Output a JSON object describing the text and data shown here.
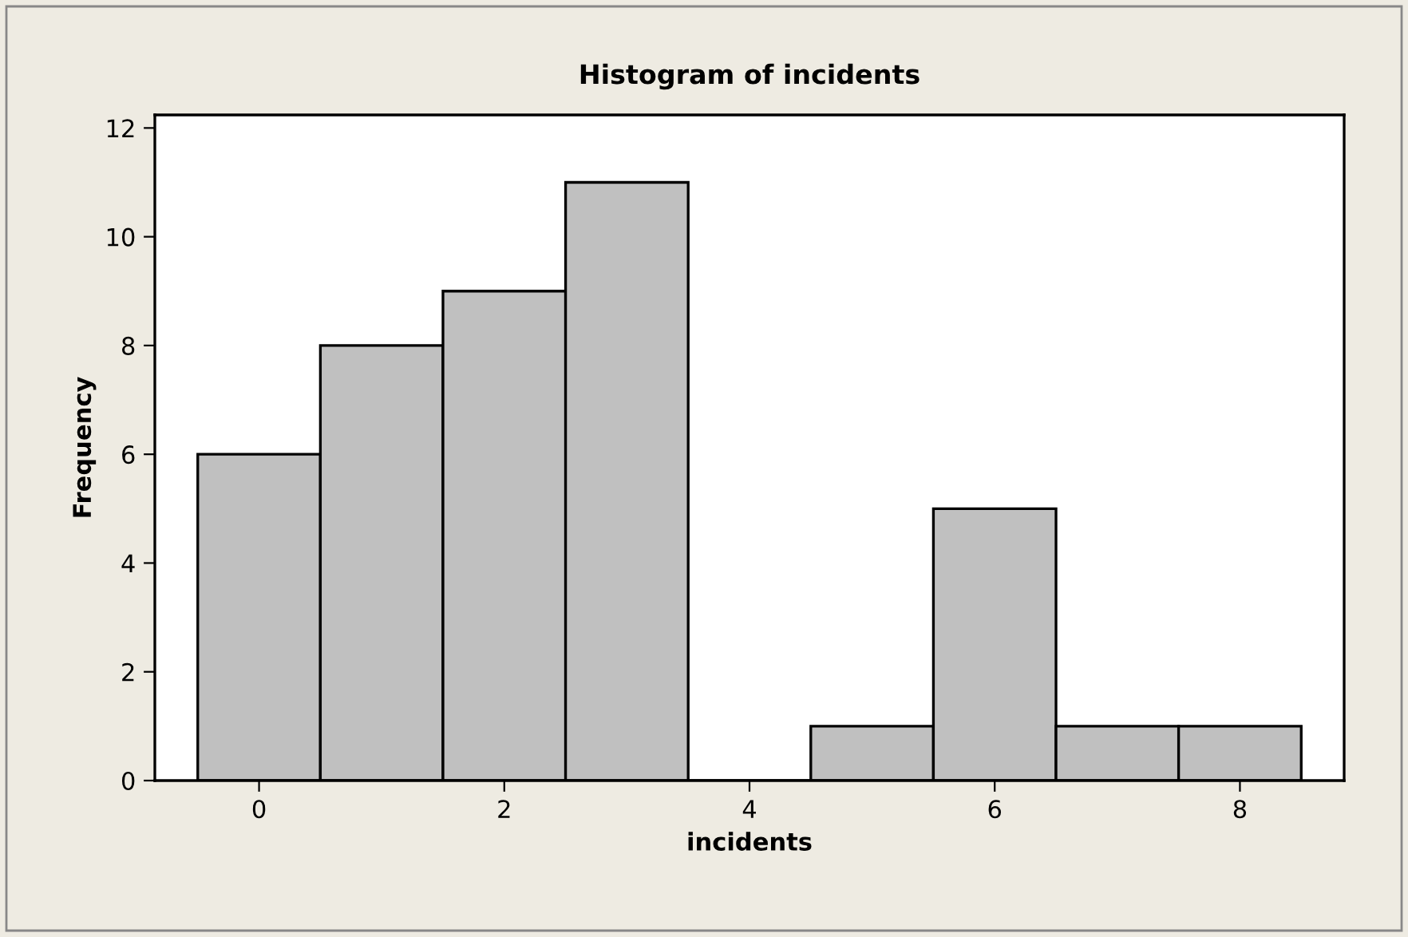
{
  "chart_data": {
    "type": "histogram",
    "title": "Histogram of incidents",
    "xlabel": "incidents",
    "ylabel": "Frequency",
    "bins": [
      -0.5,
      0.5,
      1.5,
      2.5,
      3.5,
      4.5,
      5.5,
      6.5,
      7.5,
      8.5
    ],
    "values": [
      6,
      8,
      9,
      11,
      0,
      1,
      5,
      1,
      1
    ],
    "color": "#c0c0c0",
    "xlim": [
      -0.85,
      8.85
    ],
    "ylim": [
      0,
      12.24
    ],
    "xticks": [
      0,
      2,
      4,
      6,
      8
    ],
    "yticks": [
      0,
      2,
      4,
      6,
      8,
      10,
      12
    ],
    "grid": false,
    "legend": false
  }
}
